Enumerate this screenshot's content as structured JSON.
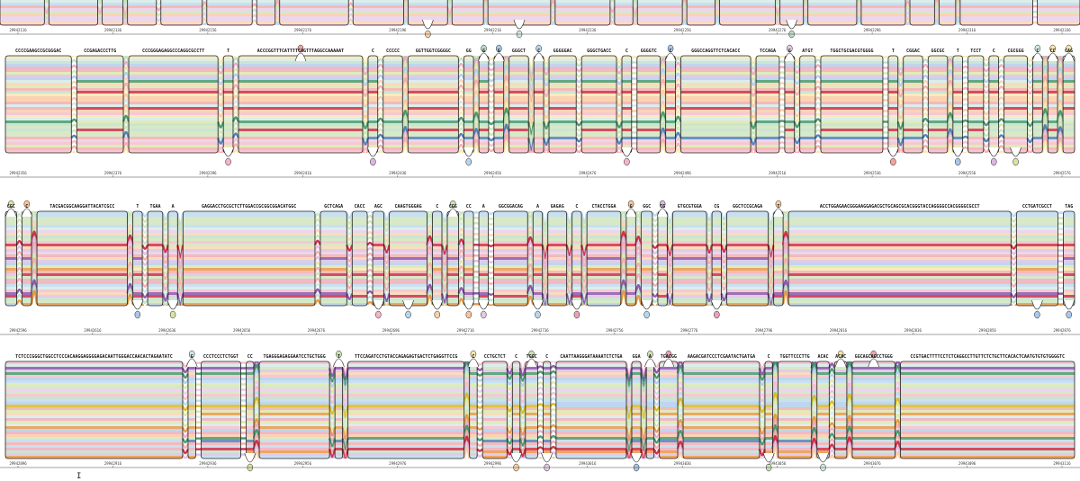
{
  "viewer": {
    "cursor_glyph": "I",
    "palette": [
      "#f3b6c4",
      "#f7d0a8",
      "#c9e2b3",
      "#b7d6ec",
      "#e6c8e6",
      "#f6e6a8",
      "#cfe8e4",
      "#f2a3a3",
      "#d8b9e0",
      "#b9dcc4",
      "#f9c49a",
      "#a9c8e8",
      "#e8a3b8",
      "#d6e5a0",
      "#c8102e",
      "#e68a2e",
      "#2e8b57",
      "#3a6fb0",
      "#7b3fa0",
      "#d4b106"
    ],
    "rows": [
      {
        "coordinates": [
          "29942116",
          "29942136",
          "29942156",
          "29942176",
          "29942196",
          "29942216",
          "29942236",
          "29942256",
          "29942276",
          "29942296",
          "29942316",
          "29942336"
        ],
        "labels": []
      },
      {
        "coordinates": [
          "29942356",
          "29942376",
          "29942396",
          "29942416",
          "29942436",
          "29942456",
          "29942476",
          "29942496",
          "29942516",
          "29942536",
          "29942556",
          "29942576"
        ],
        "labels": [
          "CCCCGAAGCCGCGGGAC",
          "CCGAGACCCTTG",
          "CCCGGGAGAGGCCCAGGCGCCTT",
          "T",
          "ACCCGGTTTCATTTTCAGTTTAGGCCAAAAAT",
          "C",
          "CCCCC",
          "GGTTGGTCGGGGC",
          "GG",
          "G",
          "G",
          "GGGCT",
          "C",
          "GGGGGAC",
          "GGGCTGACC",
          "C",
          "GGGGTC",
          "C",
          "GGGCCAGGTTCTCACACC",
          "TCCAGA",
          "G",
          "ATGT",
          "TGGCTGCGACGTGGGG",
          "T",
          "CGGAC",
          "GGCGC",
          "T",
          "TCCT",
          "C",
          "CGCGGG",
          "C",
          "CC",
          "CAG"
        ]
      },
      {
        "coordinates": [
          "29942596",
          "29942616",
          "29942636",
          "29942656",
          "29942676",
          "29942696",
          "29942716",
          "29942736",
          "29942756",
          "29942776",
          "29942796",
          "29942816",
          "29942836",
          "29942856",
          "29942876"
        ],
        "labels": [
          "CGC",
          "C",
          "TACGACGGCAAGGATTACATCGCC",
          "T",
          "TGAA",
          "A",
          "GAGGACCTGCGCTCTTGGACCGCGGCGGACATGGC",
          "GCTCAGA",
          "CACC",
          "AGC",
          "CAAGTGGGAG",
          "C",
          "CGG",
          "CC",
          "A",
          "GGCGGACAG",
          "A",
          "GAGAG",
          "C",
          "CTACCTGGA",
          "G",
          "GGC",
          "CG",
          "GTGCGTGGA",
          "CG",
          "GGCTCCGCAGA",
          "T",
          "ACCTGGAGAACGGGAAGGAGACGCTGCAGCGCACGGGTACCAGGGGCCACGGGGCGCCT",
          "CCTGATCGCCT",
          "TAG"
        ]
      },
      {
        "coordinates": [
          "29942896",
          "29942916",
          "29942936",
          "29942956",
          "29942976",
          "29942996",
          "29943016",
          "29943036",
          "29943056",
          "29943076",
          "29943096",
          "29943116"
        ],
        "labels": [
          "TCTCCCGGGCTGGCCTCCCACAAGGAGGGGAGACAATTGGGACCAACACTAGAATATC",
          "G",
          "CCCTCCCTCTGGT",
          "CC",
          "TGAGGGAGAGGAATCCTGCTGGG",
          "T",
          "TTCCAGATCCTGTACCAGAGAGTGACTCTGAGGTTCCG",
          "C",
          "CCTGCTCT",
          "C",
          "TGGC",
          "C",
          "CAATTAAGGGATAAAATCTCTGA",
          "GGA",
          "A",
          "TGACGG",
          "AAGACGATCCCTCGAATACTGATGA",
          "C",
          "TGGTTCCCTTG",
          "ACAC",
          "ACAC",
          "GGCAGCAGCCTGGG",
          "CCGTGACTTTTCCTCTCAGGCCTTGTTCTCTGCTTCACACTCAATGTGTGTGGGGTC"
        ]
      }
    ]
  }
}
